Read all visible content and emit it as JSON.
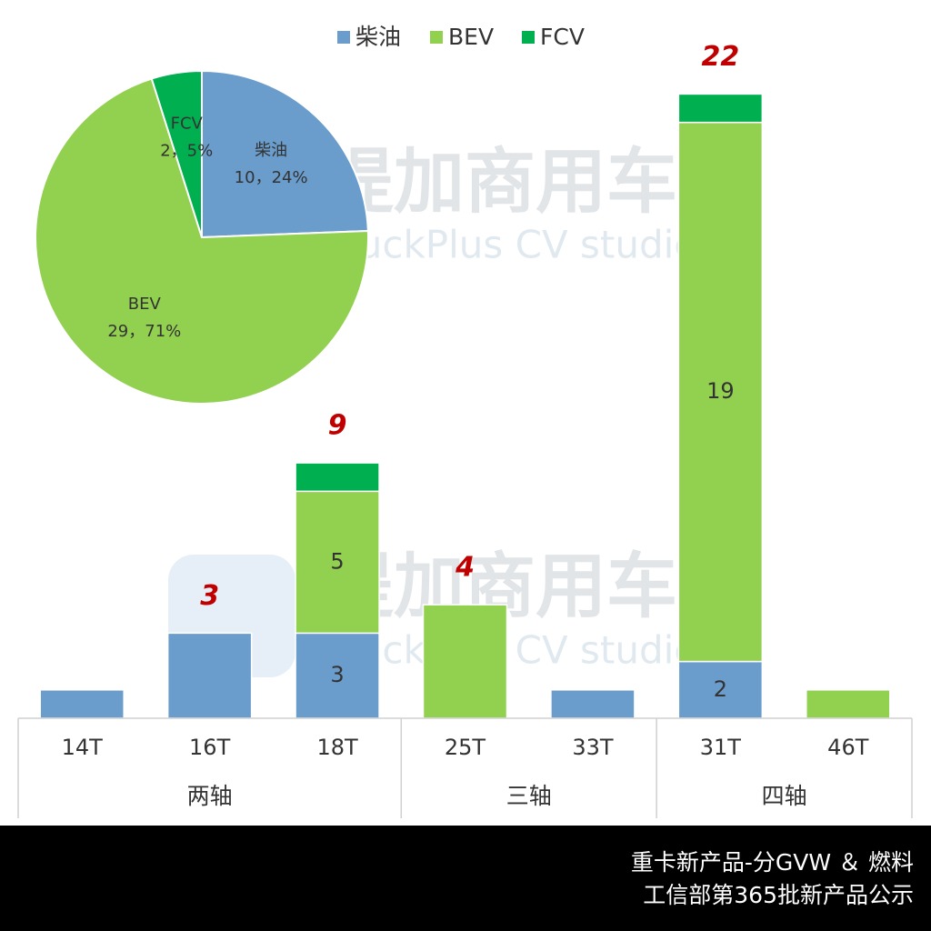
{
  "chart_data": [
    {
      "type": "stacked_bar",
      "categories": [
        "14T",
        "16T",
        "18T",
        "25T",
        "33T",
        "31T",
        "46T"
      ],
      "groups": [
        {
          "name": "两轴",
          "size": 3
        },
        {
          "name": "三轴",
          "size": 2
        },
        {
          "name": "四轴",
          "size": 2
        }
      ],
      "series": [
        {
          "name": "柴油",
          "color": "#6a9ccc",
          "values": [
            1,
            3,
            3,
            0,
            1,
            2,
            0
          ],
          "value_labels": [
            null,
            null,
            3,
            null,
            null,
            2,
            null
          ]
        },
        {
          "name": "BEV",
          "color": "#92d050",
          "values": [
            0,
            0,
            5,
            4,
            0,
            19,
            1
          ],
          "value_labels": [
            null,
            null,
            5,
            null,
            null,
            19,
            null
          ]
        },
        {
          "name": "FCV",
          "color": "#00b050",
          "values": [
            0,
            0,
            1,
            0,
            0,
            1,
            0
          ],
          "value_labels": [
            null,
            null,
            null,
            null,
            null,
            null,
            null
          ]
        }
      ],
      "total_labels": [
        null,
        3,
        9,
        4,
        null,
        22,
        null
      ],
      "ylim": [
        0,
        24
      ],
      "legend": "top"
    },
    {
      "type": "pie",
      "categories": [
        "柴油",
        "BEV",
        "FCV"
      ],
      "values": [
        10,
        29,
        2
      ],
      "value_labels": [
        "10，24%",
        "29，71%",
        "2，5%"
      ],
      "colors": [
        "#6a9ccc",
        "#92d050",
        "#00b050"
      ]
    }
  ],
  "watermark": {
    "title": "提加商用车",
    "subtitle": "TruckPlus CV studio"
  },
  "footer": {
    "lines": [
      "重卡新产品-分GVW ＆ 燃料",
      "工信部第365批新产品公示"
    ]
  }
}
